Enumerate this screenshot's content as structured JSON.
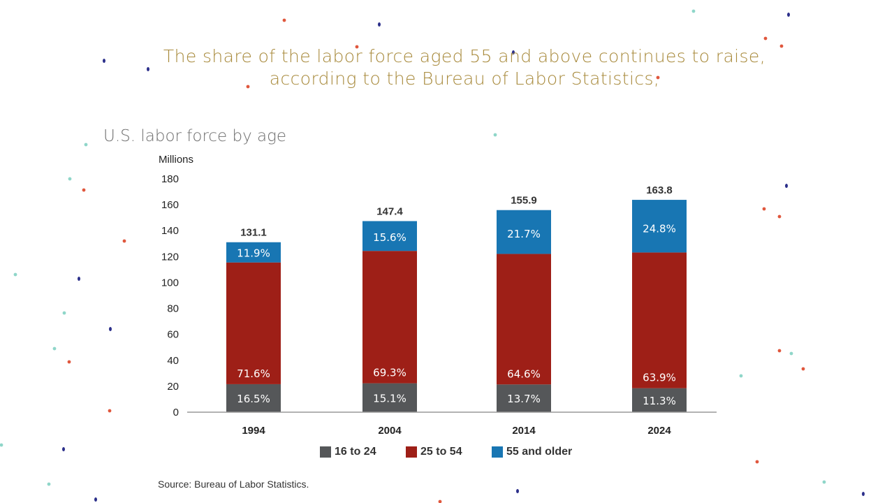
{
  "headline": {
    "line1": "The share of the labor force aged 55 and above continues to raise,",
    "line2": "according to the Bureau of Labor Statistics,"
  },
  "colors": {
    "s16_24": "#555759",
    "s25_54": "#9e1f17",
    "s55": "#1876b3",
    "headline": "#a88a3c",
    "confetti": [
      "#2b2f8a",
      "#e0573d",
      "#8fd6c9"
    ]
  },
  "chart_data": {
    "type": "bar",
    "stacked": true,
    "title": "U.S. labor force by age",
    "ylabel": "Millions",
    "xlabel": "",
    "ylim": [
      0,
      180
    ],
    "yticks": [
      0,
      20,
      40,
      60,
      80,
      100,
      120,
      140,
      160,
      180
    ],
    "categories": [
      "1994",
      "2004",
      "2014",
      "2024"
    ],
    "totals": [
      131.1,
      147.4,
      155.9,
      163.8
    ],
    "totals_labels": [
      "131.1",
      "147.4",
      "155.9",
      "163.8"
    ],
    "series": [
      {
        "name": "16 to 24",
        "values": [
          21.6,
          22.3,
          21.4,
          18.5
        ],
        "labels": [
          "16.5%",
          "15.1%",
          "13.7%",
          "11.3%"
        ]
      },
      {
        "name": "25 to 54",
        "values": [
          93.9,
          102.1,
          100.7,
          104.7
        ],
        "labels": [
          "71.6%",
          "69.3%",
          "64.6%",
          "63.9%"
        ]
      },
      {
        "name": "55 and older",
        "values": [
          15.6,
          23.0,
          33.8,
          40.6
        ],
        "labels": [
          "11.9%",
          "15.6%",
          "21.7%",
          "24.8%"
        ]
      }
    ],
    "legend_position": "bottom",
    "grid": false,
    "source": "Source: Bureau of Labor Statistics."
  }
}
